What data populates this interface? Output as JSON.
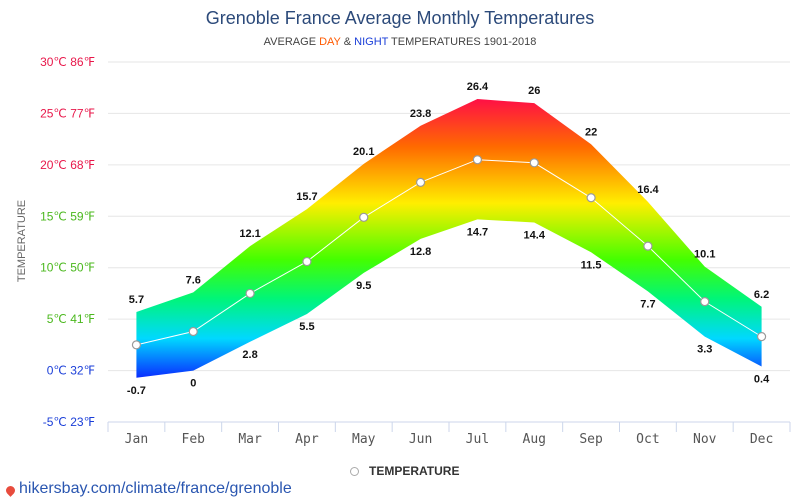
{
  "header": {
    "title": "Grenoble France Average Monthly Temperatures",
    "subtitle_prefix": "AVERAGE ",
    "subtitle_day": "DAY",
    "subtitle_amp": " & ",
    "subtitle_night": "NIGHT",
    "subtitle_suffix": " TEMPERATURES 1901-2018"
  },
  "legend": {
    "label": "TEMPERATURE",
    "icon": "circle-marker-icon"
  },
  "footer": {
    "icon": "location-pin-icon",
    "url": "hikersbay.com/climate/france/grenoble"
  },
  "colors": {
    "title": "#2c4a7a",
    "day": "#ff5a00",
    "night": "#1a3ed8",
    "link": "#2a56b0"
  },
  "chart_data": {
    "type": "area",
    "ylabel": "TEMPERATURE",
    "ylim": [
      -5,
      30
    ],
    "y_ticks": [
      {
        "value": 30,
        "label": "30℃ 86℉",
        "color": "#e8174a"
      },
      {
        "value": 25,
        "label": "25℃ 77℉",
        "color": "#e8174a"
      },
      {
        "value": 20,
        "label": "20℃ 68℉",
        "color": "#e8174a"
      },
      {
        "value": 15,
        "label": "15℃ 59℉",
        "color": "#4bb81e"
      },
      {
        "value": 10,
        "label": "10℃ 50℉",
        "color": "#4bb81e"
      },
      {
        "value": 5,
        "label": "5℃ 41℉",
        "color": "#4bb81e"
      },
      {
        "value": 0,
        "label": "0℃ 32℉",
        "color": "#1a3ed8"
      },
      {
        "value": -5,
        "label": "-5℃ 23℉",
        "color": "#1a3ed8"
      }
    ],
    "categories": [
      "Jan",
      "Feb",
      "Mar",
      "Apr",
      "May",
      "Jun",
      "Jul",
      "Aug",
      "Sep",
      "Oct",
      "Nov",
      "Dec"
    ],
    "series": [
      {
        "values": [
          5.7,
          7.6,
          12.1,
          15.7,
          20.1,
          23.8,
          26.4,
          26,
          22,
          16.4,
          10.1,
          6.2
        ]
      },
      {
        "values": [
          -0.7,
          0,
          2.8,
          5.5,
          9.5,
          12.8,
          14.7,
          14.4,
          11.5,
          7.7,
          3.3,
          0.4
        ]
      },
      {
        "name": "TEMPERATURE",
        "values": [
          2.5,
          3.8,
          7.5,
          10.6,
          14.9,
          18.3,
          20.5,
          20.2,
          16.8,
          12.1,
          6.7,
          3.3
        ]
      }
    ],
    "grid": true,
    "legend_position": "bottom-center"
  }
}
